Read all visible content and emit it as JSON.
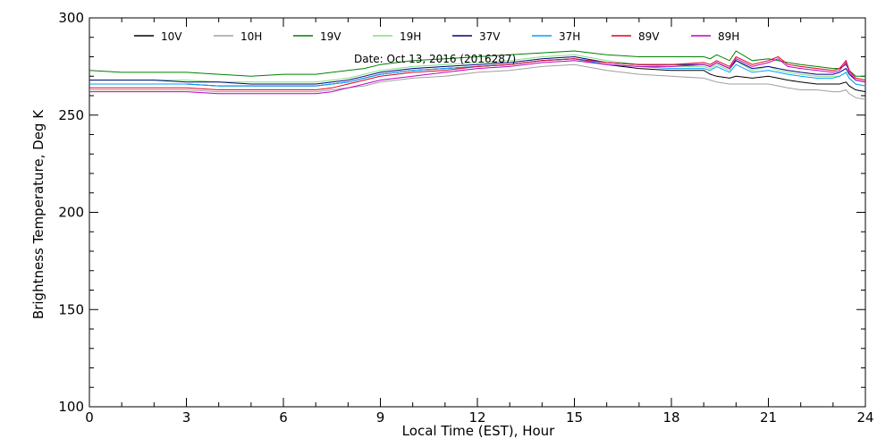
{
  "chart_data": {
    "type": "line",
    "annotation": "Date: Oct 13, 2016 (2016287)",
    "xlabel": "Local Time (EST), Hour",
    "ylabel": "Brightness Temperature, Deg K",
    "xlim": [
      0,
      24
    ],
    "ylim": [
      100,
      300
    ],
    "xticks": [
      0,
      3,
      6,
      9,
      12,
      15,
      18,
      21,
      24
    ],
    "yticks": [
      100,
      150,
      200,
      250,
      300
    ],
    "grid": false,
    "legend_position": "top, single row",
    "x": [
      0,
      1,
      2,
      3,
      4,
      5,
      6,
      7,
      7.5,
      8,
      8.5,
      9,
      9.5,
      10,
      11,
      12,
      13,
      14,
      15,
      16,
      17,
      18,
      19,
      19.2,
      19.4,
      19.8,
      20,
      20.5,
      21,
      21.3,
      21.6,
      22,
      22.5,
      23,
      23.2,
      23.4,
      23.5,
      23.7,
      24
    ],
    "series": [
      {
        "name": "10V",
        "color": "#000000",
        "values": [
          266,
          266,
          266,
          266,
          265,
          265,
          265,
          265,
          266,
          267,
          269,
          271,
          272,
          273,
          274,
          275,
          276,
          278,
          279,
          276,
          274,
          273,
          273,
          271,
          270,
          269,
          270,
          269,
          270,
          269,
          268,
          267,
          266,
          266,
          266,
          267,
          265,
          263,
          262
        ]
      },
      {
        "name": "10H",
        "color": "#a0a0a0",
        "values": [
          263,
          263,
          263,
          263,
          262,
          262,
          262,
          262,
          263,
          264,
          265,
          267,
          268,
          269,
          270,
          272,
          273,
          275,
          276,
          273,
          271,
          270,
          269,
          268,
          267,
          266,
          266,
          266,
          266,
          265,
          264,
          263,
          263,
          262,
          262,
          263,
          261,
          259,
          258
        ]
      },
      {
        "name": "19V",
        "color": "#008000",
        "values": [
          273,
          272,
          272,
          272,
          271,
          270,
          271,
          271,
          272,
          273,
          274,
          276,
          277,
          278,
          279,
          280,
          281,
          282,
          283,
          281,
          280,
          280,
          280,
          279,
          281,
          278,
          283,
          278,
          279,
          278,
          277,
          276,
          275,
          274,
          274,
          276,
          273,
          270,
          270
        ]
      },
      {
        "name": "19H",
        "color": "#80e080",
        "values": [
          268,
          268,
          268,
          268,
          267,
          267,
          267,
          267,
          268,
          269,
          271,
          273,
          274,
          275,
          276,
          277,
          278,
          280,
          281,
          278,
          276,
          275,
          275,
          274,
          276,
          273,
          278,
          273,
          275,
          273,
          272,
          271,
          270,
          270,
          270,
          272,
          269,
          266,
          265
        ]
      },
      {
        "name": "37V",
        "color": "#000080",
        "values": [
          268,
          268,
          268,
          267,
          267,
          266,
          266,
          266,
          267,
          268,
          270,
          272,
          273,
          274,
          275,
          276,
          277,
          279,
          280,
          277,
          276,
          276,
          276,
          275,
          277,
          274,
          278,
          274,
          275,
          274,
          273,
          272,
          271,
          271,
          272,
          274,
          271,
          268,
          267
        ]
      },
      {
        "name": "37H",
        "color": "#00a0ff",
        "values": [
          266,
          266,
          266,
          266,
          265,
          265,
          265,
          265,
          266,
          267,
          269,
          271,
          272,
          273,
          274,
          275,
          276,
          278,
          279,
          276,
          275,
          274,
          274,
          273,
          275,
          272,
          276,
          272,
          273,
          272,
          271,
          270,
          269,
          269,
          270,
          272,
          269,
          266,
          265
        ]
      },
      {
        "name": "89V",
        "color": "#e00020",
        "values": [
          264,
          264,
          264,
          264,
          263,
          263,
          263,
          263,
          264,
          266,
          268,
          270,
          271,
          272,
          273,
          275,
          276,
          278,
          279,
          277,
          276,
          276,
          277,
          276,
          278,
          275,
          280,
          276,
          278,
          280,
          276,
          275,
          274,
          273,
          274,
          278,
          273,
          269,
          268
        ]
      },
      {
        "name": "89H",
        "color": "#c000c0",
        "values": [
          262,
          262,
          262,
          262,
          261,
          261,
          261,
          261,
          262,
          264,
          266,
          268,
          269,
          270,
          272,
          274,
          275,
          277,
          278,
          276,
          275,
          275,
          276,
          275,
          277,
          274,
          279,
          275,
          277,
          279,
          275,
          274,
          273,
          272,
          273,
          277,
          272,
          268,
          267
        ]
      }
    ]
  }
}
